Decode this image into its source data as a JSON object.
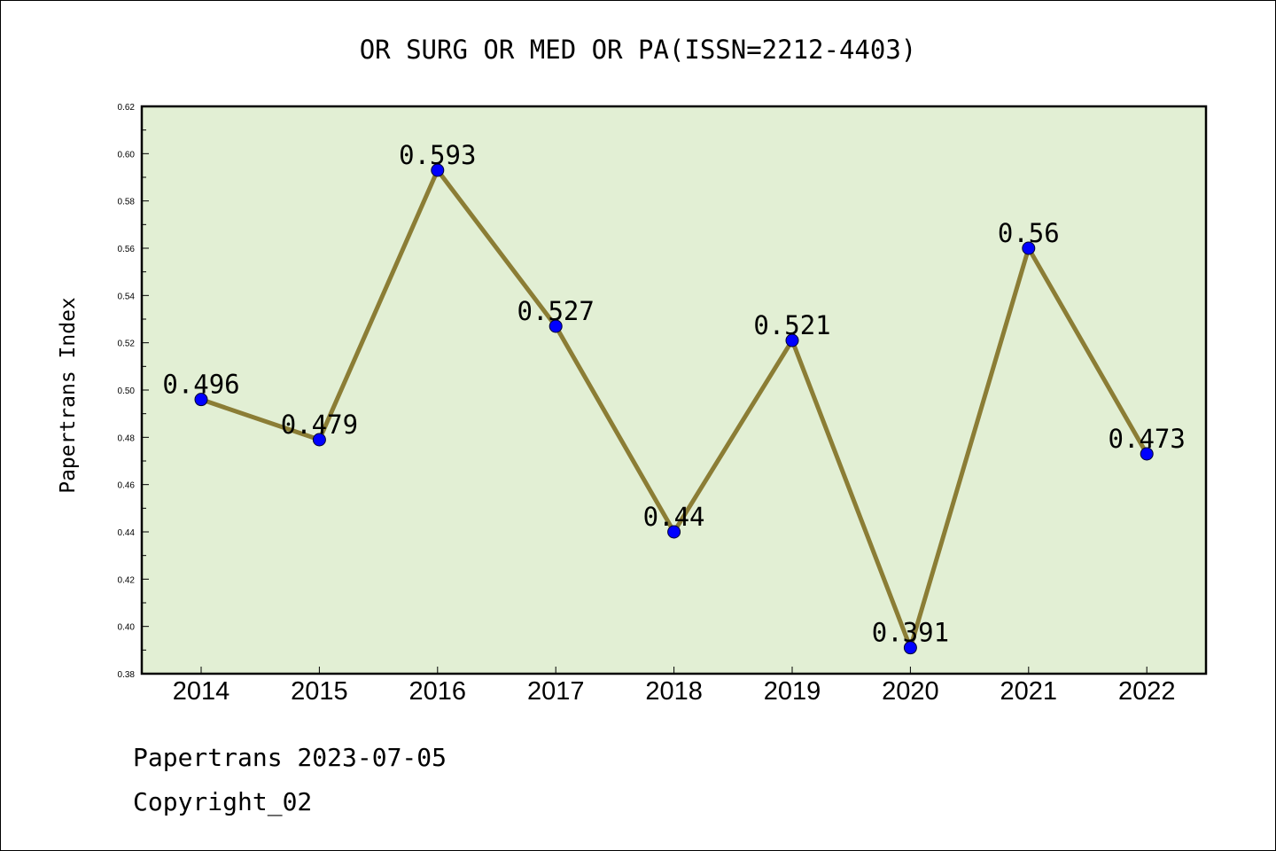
{
  "chart_data": {
    "type": "line",
    "title": "OR SURG OR MED OR PA(ISSN=2212-4403)",
    "ylabel": "Papertrans Index",
    "xlabel": "",
    "categories": [
      "2014",
      "2015",
      "2016",
      "2017",
      "2018",
      "2019",
      "2020",
      "2021",
      "2022"
    ],
    "values": [
      0.496,
      0.479,
      0.593,
      0.527,
      0.44,
      0.521,
      0.391,
      0.56,
      0.473
    ],
    "data_labels": [
      "0.496",
      "0.479",
      "0.593",
      "0.527",
      "0.44",
      "0.521",
      "0.391",
      "0.56",
      "0.473"
    ],
    "ylim": [
      0.38,
      0.62
    ],
    "yticks": [
      "0.38",
      "0.40",
      "0.42",
      "0.44",
      "0.46",
      "0.48",
      "0.50",
      "0.52",
      "0.54",
      "0.56",
      "0.58",
      "0.60",
      "0.62"
    ],
    "grid": false,
    "colors": {
      "plot_background": "#e2efd4",
      "line": "#8b7d35",
      "marker": "#0000ff"
    }
  },
  "footer": {
    "line1": "Papertrans 2023-07-05",
    "line2": "Copyright_02"
  }
}
